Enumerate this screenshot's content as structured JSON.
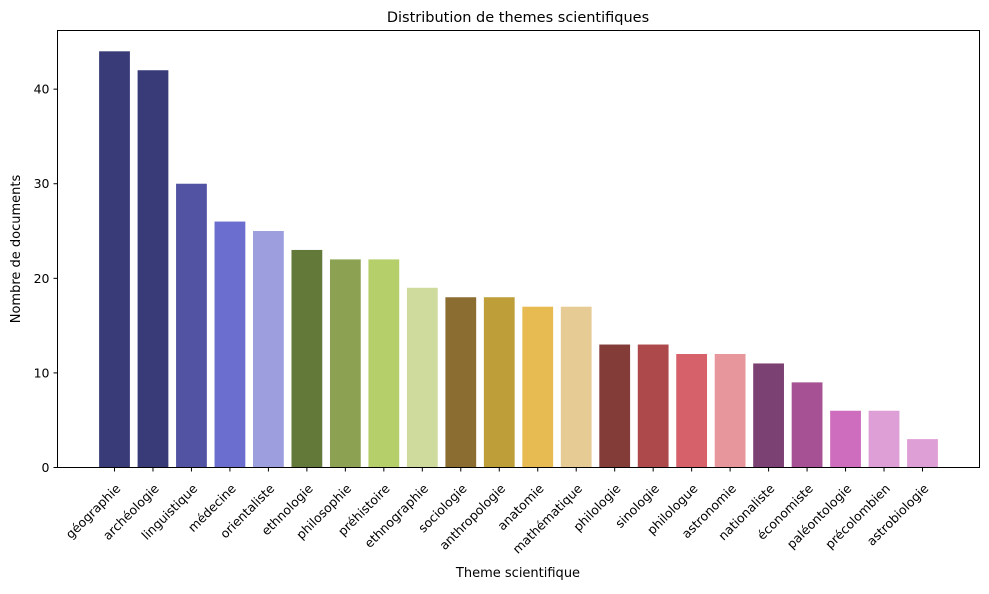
{
  "chart_data": {
    "type": "bar",
    "title": "Distribution de themes scientifiques",
    "xlabel": "Theme scientifique",
    "ylabel": "Nombre de documents",
    "ylim": [
      0,
      46.2
    ],
    "yticks": [
      0,
      10,
      20,
      30,
      40
    ],
    "grid": false,
    "categories": [
      "géographie",
      "archéologie",
      "linguistique",
      "médecine",
      "orientaliste",
      "ethnologie",
      "philosophie",
      "préhistoire",
      "ethnographie",
      "sociologie",
      "anthropologie",
      "anatomie",
      "mathématique",
      "philologie",
      "sinologie",
      "philologue",
      "astronomie",
      "nationaliste",
      "économiste",
      "paléontologie",
      "précolombien",
      "astrobiologie"
    ],
    "values": [
      44,
      42,
      30,
      26,
      25,
      23,
      22,
      22,
      19,
      18,
      18,
      17,
      17,
      13,
      13,
      12,
      12,
      11,
      9,
      6,
      6,
      3
    ],
    "colors": [
      "#393b79",
      "#393b79",
      "#5254a3",
      "#6b6ecf",
      "#9c9ede",
      "#637939",
      "#8ca252",
      "#b5cf6b",
      "#cedb9c",
      "#8c6d31",
      "#bd9e39",
      "#e7ba52",
      "#e7cb94",
      "#843c39",
      "#ad494a",
      "#d6616b",
      "#e7969c",
      "#7b4173",
      "#a55194",
      "#ce6dbd",
      "#de9ed6",
      "#de9ed6"
    ]
  }
}
